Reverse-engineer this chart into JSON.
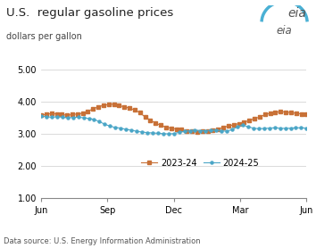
{
  "title": "U.S.  regular gasoline prices",
  "ylabel": "dollars per gallon",
  "source": "Data source: U.S. Energy Information Administration",
  "ylim": [
    1.0,
    5.0
  ],
  "yticks": [
    1.0,
    2.0,
    3.0,
    4.0,
    5.0
  ],
  "xtick_labels": [
    "Jun",
    "Sep",
    "Dec",
    "Mar",
    "Jun"
  ],
  "xtick_positions": [
    0,
    13,
    26,
    39,
    52
  ],
  "xlim": [
    0,
    52
  ],
  "series_2023": {
    "label": "2023-24",
    "color": "#c87137",
    "marker": "s",
    "values": [
      3.58,
      3.61,
      3.63,
      3.62,
      3.6,
      3.58,
      3.6,
      3.62,
      3.64,
      3.7,
      3.78,
      3.84,
      3.89,
      3.91,
      3.93,
      3.88,
      3.84,
      3.8,
      3.74,
      3.66,
      3.52,
      3.43,
      3.33,
      3.27,
      3.21,
      3.18,
      3.15,
      3.13,
      3.1,
      3.08,
      3.07,
      3.08,
      3.1,
      3.12,
      3.15,
      3.2,
      3.25,
      3.28,
      3.32,
      3.36,
      3.42,
      3.48,
      3.52,
      3.6,
      3.64,
      3.67,
      3.69,
      3.68,
      3.66,
      3.64,
      3.62,
      3.6
    ]
  },
  "series_2024": {
    "label": "2024-25",
    "color": "#4ba6c7",
    "marker": "o",
    "values": [
      3.56,
      3.53,
      3.52,
      3.53,
      3.52,
      3.5,
      3.51,
      3.52,
      3.5,
      3.48,
      3.45,
      3.38,
      3.3,
      3.24,
      3.2,
      3.18,
      3.14,
      3.12,
      3.08,
      3.06,
      3.04,
      3.03,
      3.02,
      3.01,
      3.0,
      3.01,
      3.05,
      3.08,
      3.1,
      3.12,
      3.1,
      3.1,
      3.11,
      3.12,
      3.1,
      3.08,
      3.14,
      3.22,
      3.28,
      3.22,
      3.18,
      3.16,
      3.17,
      3.18,
      3.19,
      3.18,
      3.17,
      3.18,
      3.19,
      3.19,
      3.18
    ]
  }
}
